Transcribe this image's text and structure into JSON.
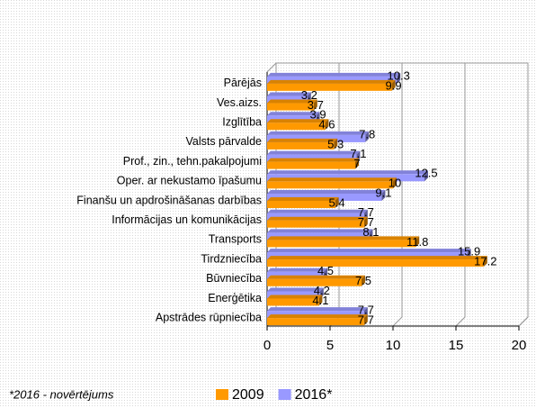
{
  "chart_data": {
    "type": "bar",
    "orientation": "horizontal",
    "categories": [
      "Pārējās",
      "Ves.aizs.",
      "Izglītība",
      "Valsts pārvalde",
      "Prof., zin., tehn.pakalpojumi",
      "Oper. ar nekustamo īpašumu",
      "Finanšu un apdrošināšanas darbības",
      "Informācijas un komunikācijas",
      "Transports",
      "Tirdzniecība",
      "Būvniecība",
      "Enerģētika",
      "Apstrādes rūpniecība"
    ],
    "series": [
      {
        "name": "2009",
        "color": "#ff9900",
        "values": [
          9.9,
          3.7,
          4.6,
          5.3,
          7,
          10,
          5.4,
          7.7,
          11.8,
          17.2,
          7.5,
          4.1,
          7.7
        ]
      },
      {
        "name": "2016*",
        "color": "#9999ff",
        "values": [
          10.3,
          3.2,
          3.9,
          7.8,
          7.1,
          12.5,
          9.1,
          7.7,
          8.1,
          15.9,
          4.5,
          4.2,
          7.7
        ]
      }
    ],
    "xlim": [
      0,
      20
    ],
    "xticks": [
      0,
      5,
      10,
      15,
      20
    ],
    "grid": true,
    "note": "*2016 - novērtējums"
  }
}
